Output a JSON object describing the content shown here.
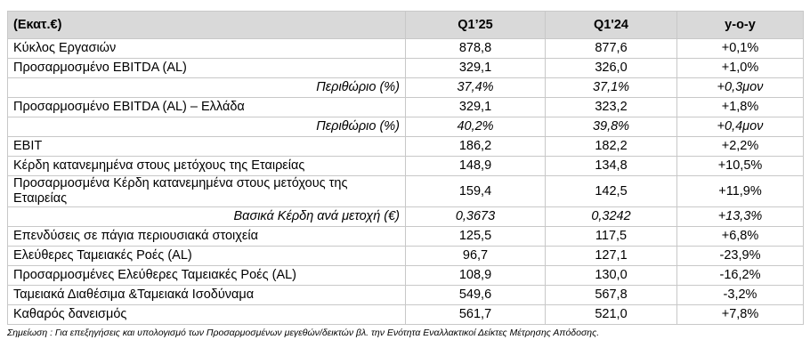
{
  "table": {
    "header": [
      "(Εκατ.€)",
      "Q1’25",
      "Q1'24",
      "y-o-y"
    ],
    "rows": [
      [
        "Κύκλος Εργασιών",
        "878,8",
        "877,6",
        "+0,1%"
      ],
      [
        "Προσαρμοσμένο EBITDA (AL)",
        "329,1",
        "326,0",
        "+1,0%"
      ],
      [
        "Περιθώριο (%)",
        "37,4%",
        "37,1%",
        "+0,3μον"
      ],
      [
        "Προσαρμοσμένο EBITDA (AL) – Ελλάδα",
        "329,1",
        "323,2",
        "+1,8%"
      ],
      [
        "Περιθώριο (%)",
        "40,2%",
        "39,8%",
        "+0,4μον"
      ],
      [
        "EBIT",
        "186,2",
        "182,2",
        "+2,2%"
      ],
      [
        "Κέρδη κατανεμημένα στους μετόχους της Εταιρείας",
        "148,9",
        "134,8",
        "+10,5%"
      ],
      [
        "Προσαρμοσμένα Κέρδη κατανεμημένα στους μετόχους της Εταιρείας",
        "159,4",
        "142,5",
        "+11,9%"
      ],
      [
        "Βασικά Κέρδη ανά μετοχή (€)",
        "0,3673",
        "0,3242",
        "+13,3%"
      ],
      [
        "Επενδύσεις σε πάγια περιουσιακά στοιχεία",
        "125,5",
        "117,5",
        "+6,8%"
      ],
      [
        "Ελεύθερες Ταμειακές Ροές (AL)",
        "96,7",
        "127,1",
        "-23,9%"
      ],
      [
        "Προσαρμοσμένες Ελεύθερες Ταμειακές Ροές (AL)",
        "108,9",
        "130,0",
        "-16,2%"
      ],
      [
        "Ταμειακά Διαθέσιμα &Ταμειακά Ισοδύναμα",
        "549,6",
        "567,8",
        "-3,2%"
      ],
      [
        "Καθαρός δανεισμός",
        "561,7",
        "521,0",
        "+7,8%"
      ]
    ],
    "note": "Σημείωση : Για επεξηγήσεις και υπολογισμό των Προσαρμοσμένων μεγεθών/δεικτών βλ. την Ενότητα Εναλλακτικοί Δείκτες Μέτρησης Απόδοσης."
  }
}
